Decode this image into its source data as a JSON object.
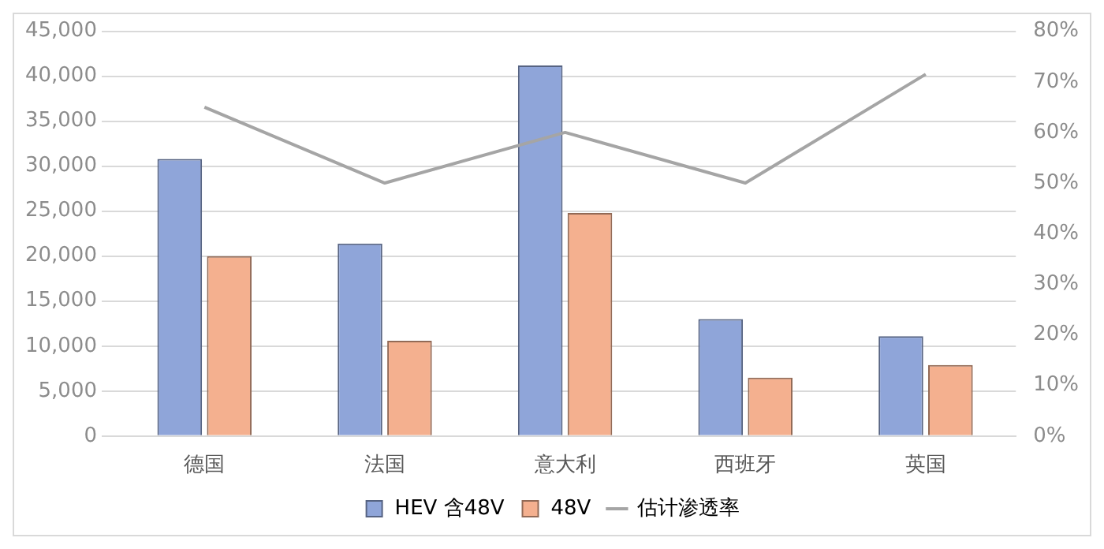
{
  "chart_data": {
    "type": "bar",
    "categories": [
      "德国",
      "法国",
      "意大利",
      "西班牙",
      "英国"
    ],
    "series": [
      {
        "name": "HEV 含48V",
        "color": "#8fa5d9",
        "values": [
          30800,
          21400,
          41200,
          13000,
          11100
        ]
      },
      {
        "name": "48V",
        "color": "#f4b08f",
        "values": [
          20000,
          10600,
          24800,
          6500,
          7900
        ]
      },
      {
        "name": "估计渗透率",
        "type": "line",
        "axis": "y2",
        "color": "#a5a5a5",
        "values": [
          65,
          50,
          60,
          50,
          71.5
        ]
      }
    ],
    "ylim": [
      0,
      45000
    ],
    "yticks": [
      0,
      {
        "value": 5000,
        "label": "5,000"
      },
      {
        "value": 10000,
        "label": "10,000"
      },
      {
        "value": 15000,
        "label": "15,000"
      },
      {
        "value": 20000,
        "label": "20,000"
      },
      {
        "value": 25000,
        "label": "25,000"
      },
      {
        "value": 30000,
        "label": "30,000"
      },
      {
        "value": 35000,
        "label": "35,000"
      },
      {
        "value": 40000,
        "label": "40,000"
      },
      {
        "value": 45000,
        "label": "45,000"
      }
    ],
    "y2lim": [
      0,
      80
    ],
    "y2ticks": [
      {
        "value": 0,
        "label": "0%"
      },
      {
        "value": 10,
        "label": "10%"
      },
      {
        "value": 20,
        "label": "20%"
      },
      {
        "value": 30,
        "label": "30%"
      },
      {
        "value": 40,
        "label": "40%"
      },
      {
        "value": 50,
        "label": "50%"
      },
      {
        "value": 60,
        "label": "60%"
      },
      {
        "value": 70,
        "label": "70%"
      },
      {
        "value": 80,
        "label": "80%"
      }
    ],
    "grid": "y",
    "legend": "bottom",
    "marker": "none"
  }
}
